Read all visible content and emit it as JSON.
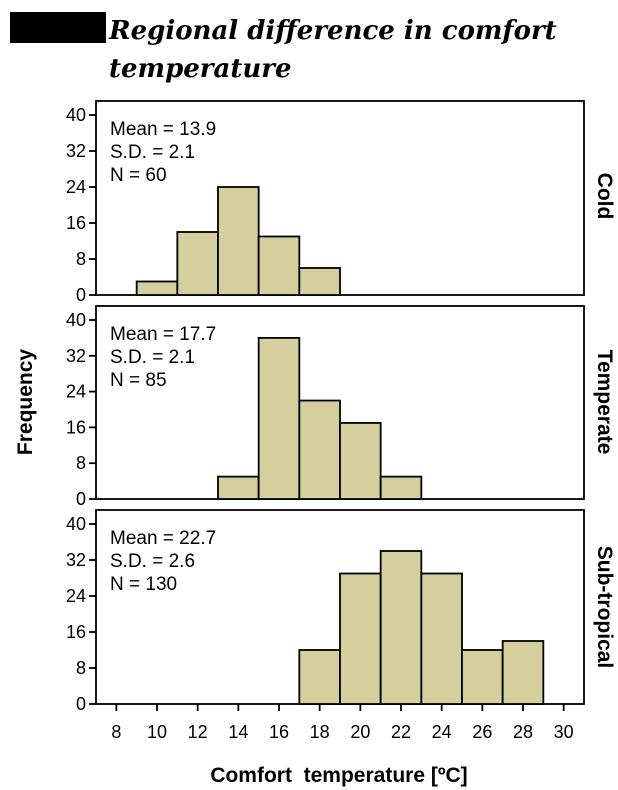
{
  "title": {
    "line1": "Regional difference in comfort",
    "line2": "temperature"
  },
  "colors": {
    "bar_fill": "#d4cf9c",
    "redaction_block": "#000000"
  },
  "chart_data": {
    "type": "bar",
    "title": "Regional difference in comfort temperature",
    "xlabel": "Comfort  temperature [ºC]",
    "ylabel": "Frequency",
    "xlim": [
      7,
      31
    ],
    "x_ticks": [
      8,
      10,
      12,
      14,
      16,
      18,
      20,
      22,
      24,
      26,
      28,
      30
    ],
    "x_tick_labels": [
      "8",
      "10",
      "12",
      "14",
      "16",
      "18",
      "20",
      "22",
      "24",
      "26",
      "28",
      "30"
    ],
    "ylim": [
      0,
      40
    ],
    "y_ticks": [
      0,
      8,
      16,
      24,
      32,
      40
    ],
    "y_tick_labels": [
      "0",
      "8",
      "16",
      "24",
      "32",
      "40"
    ],
    "bin_width": 2,
    "grid": false,
    "panels": [
      {
        "label": "Cold",
        "stats": [
          "Mean = 13.9",
          "S.D. = 2.1",
          "N = 60"
        ],
        "bins": [
          {
            "start": 9,
            "end": 11,
            "count": 3
          },
          {
            "start": 11,
            "end": 13,
            "count": 14
          },
          {
            "start": 13,
            "end": 15,
            "count": 24
          },
          {
            "start": 15,
            "end": 17,
            "count": 13
          },
          {
            "start": 17,
            "end": 19,
            "count": 6
          }
        ]
      },
      {
        "label": "Temperate",
        "stats": [
          "Mean = 17.7",
          "S.D. = 2.1",
          "N = 85"
        ],
        "bins": [
          {
            "start": 13,
            "end": 15,
            "count": 5
          },
          {
            "start": 15,
            "end": 17,
            "count": 36
          },
          {
            "start": 17,
            "end": 19,
            "count": 22
          },
          {
            "start": 19,
            "end": 21,
            "count": 17
          },
          {
            "start": 21,
            "end": 23,
            "count": 5
          }
        ]
      },
      {
        "label": "Sub-tropical",
        "stats": [
          "Mean = 22.7",
          "S.D. = 2.6",
          "N = 130"
        ],
        "bins": [
          {
            "start": 17,
            "end": 19,
            "count": 12
          },
          {
            "start": 19,
            "end": 21,
            "count": 29
          },
          {
            "start": 21,
            "end": 23,
            "count": 34
          },
          {
            "start": 23,
            "end": 25,
            "count": 29
          },
          {
            "start": 25,
            "end": 27,
            "count": 12
          },
          {
            "start": 27,
            "end": 29,
            "count": 14
          }
        ]
      }
    ]
  }
}
